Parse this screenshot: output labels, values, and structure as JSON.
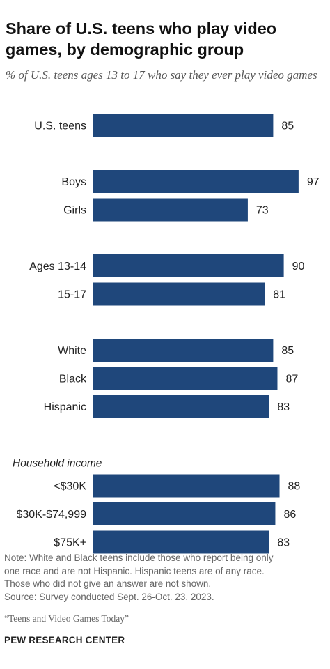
{
  "title": "Share of U.S. teens who play video games, by demographic group",
  "subtitle": "% of U.S. teens ages 13 to 17 who say they ever play video games",
  "chart_data": {
    "type": "bar",
    "orientation": "horizontal",
    "bar_color": "#1f477b",
    "title": "Share of U.S. teens who play video games, by demographic group",
    "xlim": [
      0,
      100
    ],
    "grid": false,
    "groups": [
      {
        "label": "",
        "categories": [
          "U.S. teens"
        ],
        "values": [
          85
        ]
      },
      {
        "label": "",
        "categories": [
          "Boys",
          "Girls"
        ],
        "values": [
          97,
          73
        ]
      },
      {
        "label": "",
        "categories": [
          "Ages 13-14",
          "15-17"
        ],
        "values": [
          90,
          81
        ]
      },
      {
        "label": "",
        "categories": [
          "White",
          "Black",
          "Hispanic"
        ],
        "values": [
          85,
          87,
          83
        ]
      },
      {
        "label": "Household income",
        "categories": [
          "<$30K",
          "$30K-$74,999",
          "$75K+"
        ],
        "values": [
          88,
          86,
          83
        ]
      }
    ]
  },
  "note_lines": [
    "Note: White and Black teens include those who report being only",
    "one race and are not Hispanic. Hispanic teens are of any race.",
    "Those who did not give an answer are not shown.",
    "Source: Survey conducted Sept. 26-Oct. 23, 2023."
  ],
  "report_title": "“Teens and Video Games Today”",
  "brand": "PEW RESEARCH CENTER"
}
